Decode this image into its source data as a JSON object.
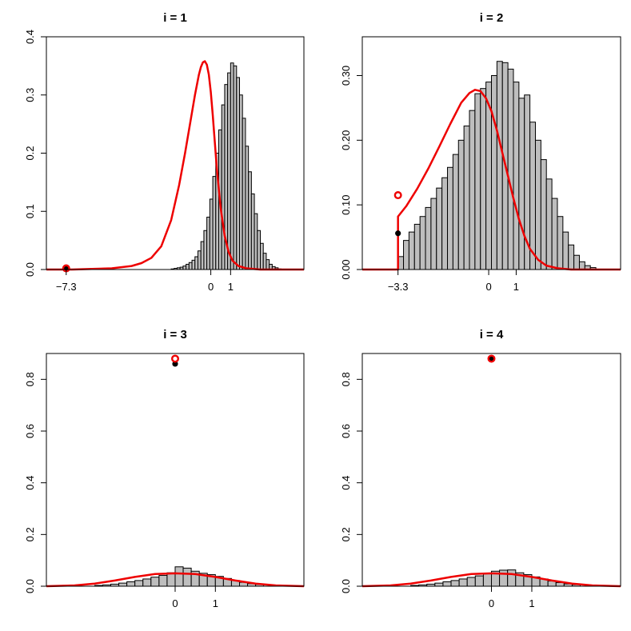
{
  "chart_data": [
    {
      "type": "histogram",
      "title": "i = 1",
      "xlim": [
        -8.3,
        4.7
      ],
      "ylim": [
        0,
        0.4
      ],
      "xticks": [
        {
          "value": -7.3,
          "label": "−7.3"
        },
        {
          "value": 0,
          "label": "0"
        },
        {
          "value": 1,
          "label": "1"
        }
      ],
      "yticks": [
        {
          "value": 0,
          "label": "0.0"
        },
        {
          "value": 0.1,
          "label": "0.1"
        },
        {
          "value": 0.2,
          "label": "0.2"
        },
        {
          "value": 0.3,
          "label": "0.3"
        },
        {
          "value": 0.4,
          "label": "0.4"
        }
      ],
      "histogram": {
        "start": -2.0,
        "width": 0.15,
        "values": [
          0.001,
          0.002,
          0.003,
          0.004,
          0.006,
          0.009,
          0.012,
          0.016,
          0.022,
          0.032,
          0.048,
          0.067,
          0.09,
          0.121,
          0.16,
          0.2,
          0.24,
          0.283,
          0.318,
          0.338,
          0.355,
          0.35,
          0.33,
          0.3,
          0.26,
          0.212,
          0.168,
          0.13,
          0.096,
          0.067,
          0.045,
          0.028,
          0.017,
          0.009,
          0.005,
          0.003,
          0.001
        ]
      },
      "curve": {
        "x": [
          -8.3,
          -7.0,
          -6.0,
          -5.0,
          -4.0,
          -3.5,
          -3.0,
          -2.5,
          -2.0,
          -1.6,
          -1.3,
          -1.0,
          -0.8,
          -0.6,
          -0.5,
          -0.4,
          -0.3,
          -0.2,
          -0.1,
          0.0,
          0.1,
          0.2,
          0.3,
          0.5,
          0.7,
          0.9,
          1.1,
          1.4,
          1.8,
          2.5,
          3.5,
          4.7
        ],
        "y": [
          0.0,
          0.0,
          0.001,
          0.002,
          0.006,
          0.011,
          0.02,
          0.04,
          0.085,
          0.145,
          0.2,
          0.26,
          0.3,
          0.335,
          0.348,
          0.356,
          0.358,
          0.352,
          0.335,
          0.305,
          0.265,
          0.22,
          0.175,
          0.105,
          0.058,
          0.03,
          0.015,
          0.006,
          0.002,
          0.0,
          0.0,
          0.0
        ]
      },
      "point_mass": {
        "x": -7.3,
        "red_open": 0.002,
        "black_filled": 0.001
      }
    },
    {
      "type": "histogram",
      "title": "i = 2",
      "xlim": [
        -4.6,
        4.8
      ],
      "ylim": [
        0,
        0.36
      ],
      "xticks": [
        {
          "value": -3.3,
          "label": "−3.3"
        },
        {
          "value": 0,
          "label": "0"
        },
        {
          "value": 1,
          "label": "1"
        }
      ],
      "yticks": [
        {
          "value": 0,
          "label": "0.00"
        },
        {
          "value": 0.1,
          "label": "0.10"
        },
        {
          "value": 0.2,
          "label": "0.20"
        },
        {
          "value": 0.3,
          "label": "0.30"
        }
      ],
      "histogram": {
        "start": -3.3,
        "width": 0.2,
        "values": [
          0.02,
          0.045,
          0.058,
          0.07,
          0.082,
          0.096,
          0.11,
          0.126,
          0.142,
          0.158,
          0.178,
          0.2,
          0.222,
          0.246,
          0.272,
          0.28,
          0.29,
          0.3,
          0.322,
          0.32,
          0.31,
          0.29,
          0.265,
          0.27,
          0.228,
          0.2,
          0.17,
          0.14,
          0.11,
          0.082,
          0.058,
          0.038,
          0.022,
          0.012,
          0.006,
          0.003
        ]
      },
      "curve": {
        "x": [
          -4.6,
          -3.3,
          -3.3,
          -3.0,
          -2.6,
          -2.2,
          -1.8,
          -1.4,
          -1.0,
          -0.7,
          -0.5,
          -0.3,
          -0.1,
          0.1,
          0.3,
          0.5,
          0.7,
          0.9,
          1.1,
          1.3,
          1.5,
          1.8,
          2.1,
          2.5,
          3.0,
          4.8
        ],
        "y": [
          0.0,
          0.0,
          0.082,
          0.098,
          0.125,
          0.156,
          0.19,
          0.225,
          0.258,
          0.273,
          0.278,
          0.276,
          0.265,
          0.245,
          0.215,
          0.18,
          0.145,
          0.11,
          0.078,
          0.052,
          0.032,
          0.015,
          0.006,
          0.002,
          0.0,
          0.0
        ]
      },
      "point_mass": {
        "x": -3.3,
        "red_open": 0.115,
        "black_filled": 0.056
      }
    },
    {
      "type": "histogram",
      "title": "i = 3",
      "xlim": [
        -3.2,
        3.2
      ],
      "ylim": [
        0,
        0.9
      ],
      "xticks": [
        {
          "value": 0,
          "label": "0"
        },
        {
          "value": 1,
          "label": "1"
        }
      ],
      "yticks": [
        {
          "value": 0,
          "label": "0.0"
        },
        {
          "value": 0.2,
          "label": "0.2"
        },
        {
          "value": 0.4,
          "label": "0.4"
        },
        {
          "value": 0.6,
          "label": "0.6"
        },
        {
          "value": 0.8,
          "label": "0.8"
        }
      ],
      "histogram": {
        "start": -2.0,
        "width": 0.2,
        "values": [
          0.003,
          0.005,
          0.008,
          0.012,
          0.017,
          0.022,
          0.028,
          0.035,
          0.042,
          0.052,
          0.075,
          0.07,
          0.058,
          0.05,
          0.045,
          0.038,
          0.03,
          0.022,
          0.015,
          0.01,
          0.007
        ]
      },
      "curve": {
        "x": [
          -3.2,
          -2.5,
          -2.0,
          -1.5,
          -1.0,
          -0.5,
          0.0,
          0.5,
          1.0,
          1.5,
          2.0,
          2.5,
          3.2
        ],
        "y": [
          0.0,
          0.003,
          0.01,
          0.022,
          0.036,
          0.047,
          0.05,
          0.047,
          0.036,
          0.022,
          0.01,
          0.003,
          0.0
        ]
      },
      "point_mass": {
        "x": 0,
        "red_open": 0.88,
        "black_filled": 0.86
      }
    },
    {
      "type": "histogram",
      "title": "i = 4",
      "xlim": [
        -3.2,
        3.2
      ],
      "ylim": [
        0,
        0.9
      ],
      "xticks": [
        {
          "value": 0,
          "label": "0"
        },
        {
          "value": 1,
          "label": "1"
        }
      ],
      "yticks": [
        {
          "value": 0,
          "label": "0.0"
        },
        {
          "value": 0.2,
          "label": "0.2"
        },
        {
          "value": 0.4,
          "label": "0.4"
        },
        {
          "value": 0.6,
          "label": "0.6"
        },
        {
          "value": 0.8,
          "label": "0.8"
        }
      ],
      "histogram": {
        "start": -2.0,
        "width": 0.2,
        "values": [
          0.003,
          0.005,
          0.008,
          0.012,
          0.017,
          0.022,
          0.028,
          0.034,
          0.04,
          0.048,
          0.058,
          0.062,
          0.063,
          0.052,
          0.045,
          0.036,
          0.028,
          0.02,
          0.014,
          0.009,
          0.006
        ]
      },
      "curve": {
        "x": [
          -3.2,
          -2.5,
          -2.0,
          -1.5,
          -1.0,
          -0.5,
          0.0,
          0.5,
          1.0,
          1.5,
          2.0,
          2.5,
          3.2
        ],
        "y": [
          0.0,
          0.003,
          0.01,
          0.022,
          0.036,
          0.047,
          0.05,
          0.047,
          0.036,
          0.022,
          0.01,
          0.003,
          0.0
        ]
      },
      "point_mass": {
        "x": 0,
        "red_open": 0.88,
        "black_filled": 0.88
      }
    }
  ],
  "colors": {
    "bar_fill": "#bebebe",
    "bar_stroke": "#000000",
    "curve": "#ee0000",
    "axis": "#000000"
  }
}
